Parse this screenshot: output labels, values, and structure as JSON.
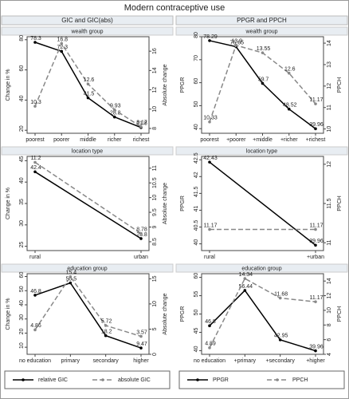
{
  "title": "Modern contraceptive use",
  "column_titles": [
    "GIC and GIC(abs)",
    "PPGR and PPCH"
  ],
  "chart_data": [
    {
      "type": "line",
      "subtitle": "wealth group",
      "ylabel": "Change in %",
      "y2label": "Absolute change",
      "categories": [
        "poorest",
        "poorer",
        "middle",
        "richer",
        "richest"
      ],
      "series": [
        {
          "name": "relative GIC",
          "color": "#000000",
          "line_style": "solid",
          "values": [
            78.3,
            72.3,
            41.5,
            28.8,
            21.8
          ]
        },
        {
          "name": "absolute GIC",
          "color": "#888888",
          "line_style": "dashed",
          "axis": "y2",
          "values": [
            10.3,
            16.8,
            12.6,
            9.93,
            8.17
          ]
        }
      ],
      "ylim": [
        18,
        82
      ],
      "yticks": [
        20,
        40,
        60,
        80
      ],
      "y2lim": [
        7.5,
        17.5
      ],
      "y2ticks": [
        8,
        10,
        12,
        14,
        16
      ]
    },
    {
      "type": "line",
      "subtitle": "wealth group",
      "ylabel": "PPGR",
      "y2label": "PPCH",
      "categories": [
        "poorest",
        "+poorer",
        "+middle",
        "+richer",
        "+richest"
      ],
      "series": [
        {
          "name": "PPGR",
          "color": "#000000",
          "line_style": "solid",
          "values": [
            78.29,
            75.65,
            59.7,
            48.52,
            39.96
          ]
        },
        {
          "name": "PPCH",
          "color": "#888888",
          "line_style": "dashed",
          "axis": "y2",
          "values": [
            10.33,
            13.9,
            13.55,
            12.6,
            11.17
          ]
        }
      ],
      "ylim": [
        38,
        80
      ],
      "yticks": [
        40,
        50,
        60,
        70,
        80
      ],
      "y2lim": [
        9.8,
        14.3
      ],
      "y2ticks": [
        10,
        11,
        12,
        13,
        14
      ]
    },
    {
      "type": "line",
      "subtitle": "location type",
      "ylabel": "Change in %",
      "y2label": "Absolute change",
      "categories": [
        "rural",
        "urban"
      ],
      "series": [
        {
          "name": "relative GIC",
          "color": "#000000",
          "line_style": "solid",
          "values": [
            42.4,
            26.8
          ]
        },
        {
          "name": "absolute GIC",
          "color": "#888888",
          "line_style": "dashed",
          "axis": "y2",
          "values": [
            11.2,
            8.78
          ]
        }
      ],
      "ylim": [
        24,
        46
      ],
      "yticks": [
        25,
        30,
        35,
        40,
        45
      ],
      "y2lim": [
        8.2,
        11.4
      ],
      "y2ticks": [
        8.5,
        9,
        9.5,
        10,
        10.5,
        11
      ]
    },
    {
      "type": "line",
      "subtitle": "location type",
      "ylabel": "PPGR",
      "y2label": "PPCH",
      "categories": [
        "rural",
        "+urban"
      ],
      "series": [
        {
          "name": "PPGR",
          "color": "#000000",
          "line_style": "solid",
          "values": [
            42.43,
            39.96
          ]
        },
        {
          "name": "PPCH",
          "color": "#888888",
          "line_style": "dashed",
          "axis": "y2",
          "values": [
            11.17,
            11.17
          ]
        }
      ],
      "ylim": [
        39.8,
        42.6
      ],
      "yticks": [
        40,
        40.5,
        41,
        41.5,
        42,
        42.5
      ],
      "y2lim": [
        10.9,
        12.1
      ],
      "y2ticks": [
        11,
        11.5,
        12
      ]
    },
    {
      "type": "line",
      "subtitle": "education group",
      "ylabel": "Change in %",
      "y2label": "Absolute change",
      "categories": [
        "no education",
        "primary",
        "secondary",
        "higher"
      ],
      "series": [
        {
          "name": "relative GIC",
          "color": "#000000",
          "line_style": "solid",
          "values": [
            46.8,
            55.5,
            18.2,
            9.47
          ]
        },
        {
          "name": "absolute GIC",
          "color": "#888888",
          "line_style": "dashed",
          "axis": "y2",
          "values": [
            4.86,
            15.4,
            5.72,
            3.57
          ]
        }
      ],
      "ylim": [
        5,
        62
      ],
      "yticks": [
        10,
        20,
        30,
        40,
        50,
        60
      ],
      "y2lim": [
        0,
        16
      ],
      "y2ticks": [
        0,
        5,
        10,
        15
      ]
    },
    {
      "type": "line",
      "subtitle": "education group",
      "ylabel": "PPGR",
      "y2label": "PPCH",
      "categories": [
        "no education",
        "+primary",
        "+secondary",
        "+higher"
      ],
      "series": [
        {
          "name": "PPGR",
          "color": "#000000",
          "line_style": "solid",
          "values": [
            46.8,
            56.44,
            42.95,
            39.96
          ]
        },
        {
          "name": "PPCH",
          "color": "#888888",
          "line_style": "dashed",
          "axis": "y2",
          "values": [
            4.89,
            14.34,
            11.68,
            11.17
          ]
        }
      ],
      "ylim": [
        39,
        61
      ],
      "yticks": [
        40,
        45,
        50,
        55,
        60
      ],
      "y2lim": [
        4,
        15
      ],
      "y2ticks": [
        4,
        6,
        8,
        10,
        12,
        14
      ]
    }
  ]
}
